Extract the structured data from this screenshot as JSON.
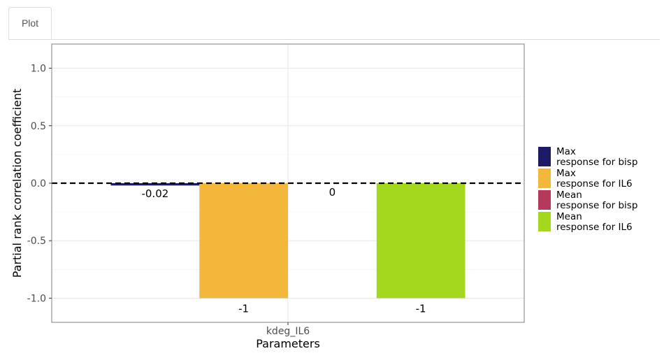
{
  "tabs": [
    {
      "label": "Plot"
    }
  ],
  "chart_data": {
    "type": "bar",
    "categories": [
      "kdeg_IL6"
    ],
    "series": [
      {
        "name": "Max\nresponse for bisp",
        "values": [
          -0.02
        ],
        "labels": [
          "-0.02"
        ],
        "color": "#1c1a66"
      },
      {
        "name": "Max\nresponse for IL6",
        "values": [
          -1
        ],
        "labels": [
          "-1"
        ],
        "color": "#f2b73b"
      },
      {
        "name": "Mean\nresponse for bisp",
        "values": [
          0
        ],
        "labels": [
          "0"
        ],
        "color": "#b5395b"
      },
      {
        "name": "Mean\nresponse for IL6",
        "values": [
          -1
        ],
        "labels": [
          "-1"
        ],
        "color": "#a3d81f"
      }
    ],
    "xlabel": "Parameters",
    "ylabel": "Partial rank correlation coefficient",
    "ylim": [
      -1.21,
      1.21
    ],
    "yticks": [
      1.0,
      0.5,
      0.0,
      -0.5,
      -1.0
    ],
    "ytick_labels": [
      "1.0",
      "0.5",
      "0.0",
      "-0.5",
      "-1.0"
    ],
    "reference_line": {
      "y": 0,
      "style": "dashed"
    },
    "grid": true,
    "legend_position": "right"
  }
}
